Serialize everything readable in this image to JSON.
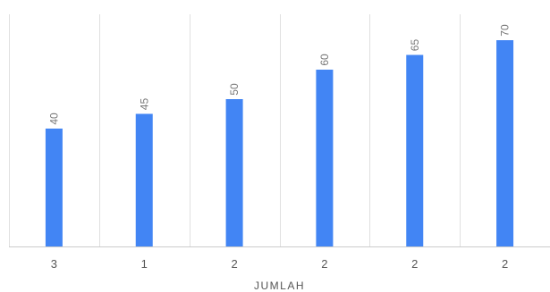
{
  "chart_data": {
    "type": "bar",
    "categories": [
      "3",
      "1",
      "2",
      "2",
      "2",
      "2"
    ],
    "values": [
      40,
      45,
      50,
      60,
      65,
      70
    ],
    "data_labels": [
      "40",
      "45",
      "50",
      "60",
      "65",
      "70"
    ],
    "title": "",
    "xlabel": "JUMLAH",
    "ylabel": "",
    "ylim": [
      0,
      70
    ],
    "grid": "vertical",
    "legend": "none",
    "colors": {
      "bar": "#4285f4",
      "grid": "#e0e0e0",
      "axis": "#cccccc"
    }
  }
}
